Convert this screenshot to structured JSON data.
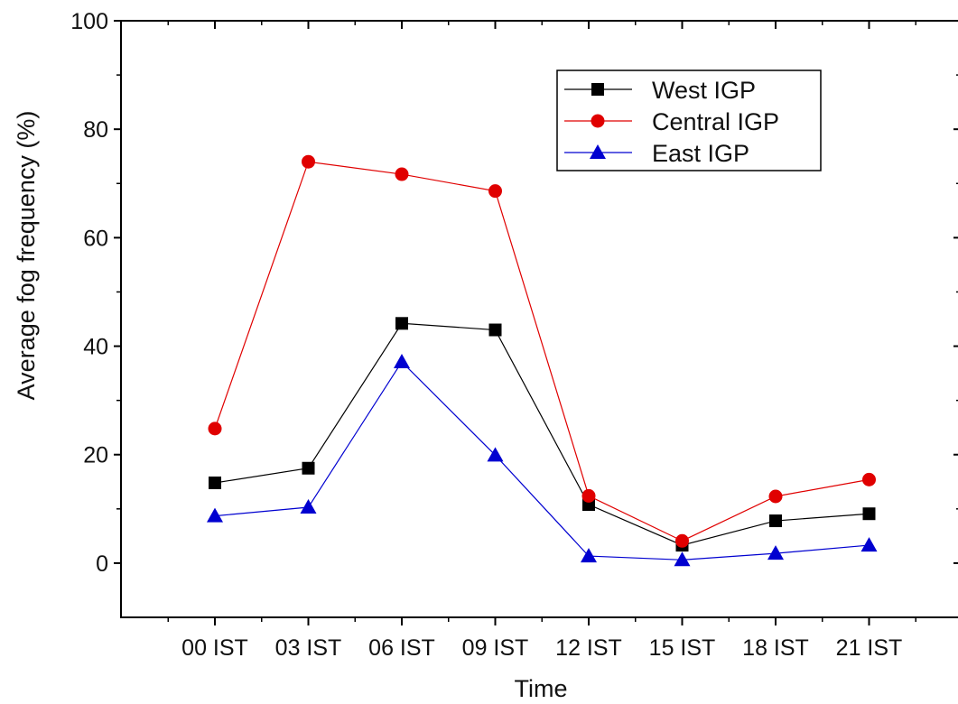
{
  "chart_data": {
    "type": "line",
    "title": "",
    "xlabel": "Time",
    "ylabel": "Average fog frequency (%)",
    "categories": [
      "00 IST",
      "03 IST",
      "06 IST",
      "09 IST",
      "12 IST",
      "15 IST",
      "18 IST",
      "21 IST"
    ],
    "ylim": [
      -10,
      100
    ],
    "yticks": [
      0,
      20,
      40,
      60,
      80,
      100
    ],
    "grid": false,
    "legend_position": "top-right",
    "series": [
      {
        "name": "West IGP",
        "marker": "square",
        "color": "#000000",
        "values": [
          14.8,
          17.5,
          44.2,
          43.0,
          10.8,
          3.3,
          7.8,
          9.1
        ]
      },
      {
        "name": "Central IGP",
        "marker": "circle",
        "color": "#e00000",
        "values": [
          24.8,
          74.0,
          71.7,
          68.6,
          12.4,
          4.1,
          12.3,
          15.4
        ]
      },
      {
        "name": "East IGP",
        "marker": "triangle",
        "color": "#0000d0",
        "values": [
          8.7,
          10.3,
          37.1,
          19.9,
          1.3,
          0.6,
          1.8,
          3.3
        ]
      }
    ]
  }
}
